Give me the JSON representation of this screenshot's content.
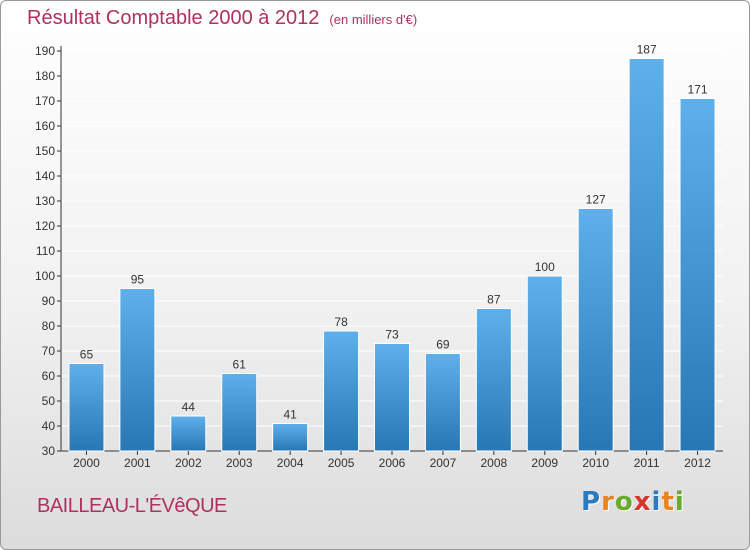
{
  "title": "Résultat Comptable 2000 à 2012",
  "subtitle": "(en milliers d'€)",
  "town": "BAILLEAU-L'ÉVêQUE",
  "logo": {
    "text": "Proxiti",
    "letters": [
      {
        "ch": "P",
        "color": "#2a7bbf"
      },
      {
        "ch": "r",
        "color": "#e8831e"
      },
      {
        "ch": "o",
        "color": "#6aaa2a"
      },
      {
        "ch": "x",
        "color": "#d9342b"
      },
      {
        "ch": "i",
        "color": "#2a7bbf"
      },
      {
        "ch": "t",
        "color": "#e8831e"
      },
      {
        "ch": "i",
        "color": "#6aaa2a"
      }
    ]
  },
  "colors": {
    "bar_top": "#5fb0ea",
    "bar_bottom": "#2877b5",
    "title": "#b03060",
    "grid": "#ffffff",
    "axis": "#333333"
  },
  "chart_data": {
    "type": "bar",
    "categories": [
      "2000",
      "2001",
      "2002",
      "2003",
      "2004",
      "2005",
      "2006",
      "2007",
      "2008",
      "2009",
      "2010",
      "2011",
      "2012"
    ],
    "values": [
      65,
      95,
      44,
      61,
      41,
      78,
      73,
      69,
      87,
      100,
      127,
      187,
      171
    ],
    "title": "Résultat Comptable 2000 à 2012",
    "xlabel": "",
    "ylabel": "",
    "ylim": [
      30,
      190
    ],
    "yticks": [
      30,
      40,
      50,
      60,
      70,
      80,
      90,
      100,
      110,
      120,
      130,
      140,
      150,
      160,
      170,
      180,
      190
    ],
    "grid": true,
    "data_labels": true
  }
}
